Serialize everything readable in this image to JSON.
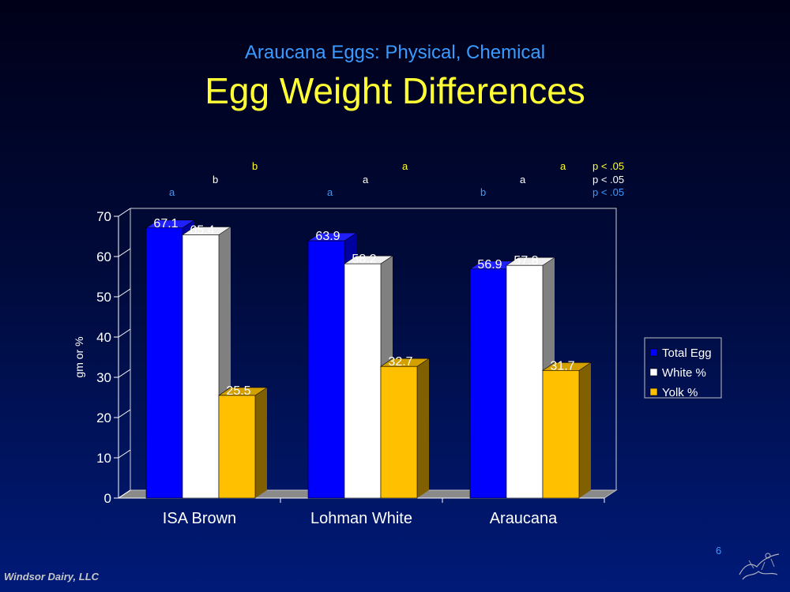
{
  "slide": {
    "subtitle": "Araucana Eggs: Physical, Chemical",
    "title": "Egg Weight Differences",
    "footer": "Windsor Dairy, LLC",
    "page_number": "6"
  },
  "significance": {
    "rows": [
      {
        "color": "#ffff33",
        "letters": [
          "b",
          "a",
          "a"
        ],
        "note": "p < .05"
      },
      {
        "color": "#ffffff",
        "letters": [
          "b",
          "a",
          "a"
        ],
        "note": "p < .05"
      },
      {
        "color": "#3a9bff",
        "letters": [
          "a",
          "a",
          "b"
        ],
        "note": "p < .05"
      }
    ]
  },
  "chart_data": {
    "type": "bar",
    "categories": [
      "ISA Brown",
      "Lohman White",
      "Araucana"
    ],
    "series": [
      {
        "name": "Total Egg",
        "values": [
          67.1,
          63.9,
          56.9
        ],
        "color": "#0000ff",
        "side": "#0000a0",
        "top": "#2020ff"
      },
      {
        "name": "White %",
        "values": [
          65.4,
          58.2,
          57.8
        ],
        "color": "#ffffff",
        "side": "#808080",
        "top": "#f0f0f0"
      },
      {
        "name": "Yolk %",
        "values": [
          25.5,
          32.7,
          31.7
        ],
        "color": "#ffc000",
        "side": "#806000",
        "top": "#d4a000"
      }
    ],
    "data_labels": [
      "67.1",
      "65.4",
      "25.5",
      "63.9",
      "58.2",
      "32.7",
      "56.9",
      "57.8",
      "31.7"
    ],
    "ylabel": "gm or %",
    "yticks": [
      "0",
      "10",
      "20",
      "30",
      "40",
      "50",
      "60",
      "70"
    ],
    "ylim": [
      0,
      70
    ],
    "grid": false,
    "legend": "right",
    "three_d": true
  }
}
